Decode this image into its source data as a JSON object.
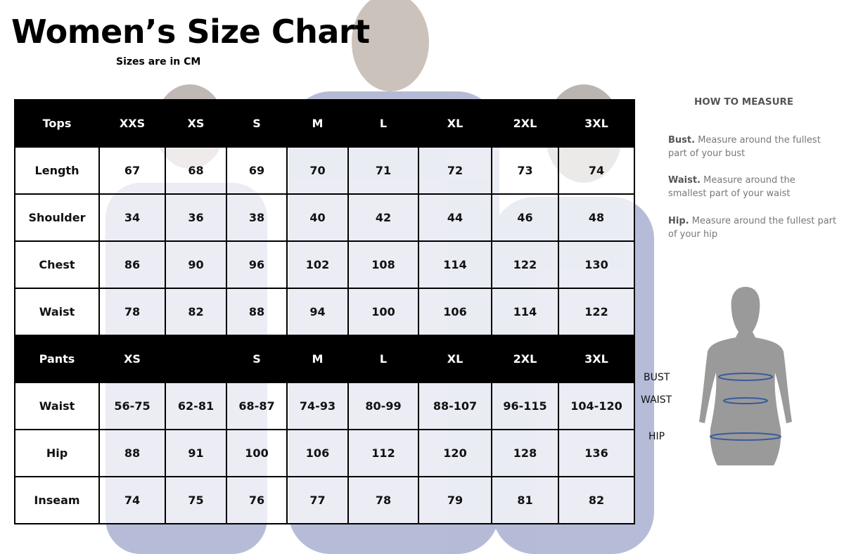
{
  "title": "Women’s Size Chart",
  "subtitle": "Sizes are in CM",
  "tops": {
    "header": [
      "Tops",
      "XXS",
      "XS",
      "S",
      "M",
      "L",
      "XL",
      "2XL",
      "3XL"
    ],
    "rows": [
      [
        "Length",
        "67",
        "68",
        "69",
        "70",
        "71",
        "72",
        "73",
        "74"
      ],
      [
        "Shoulder",
        "34",
        "36",
        "38",
        "40",
        "42",
        "44",
        "46",
        "48"
      ],
      [
        "Chest",
        "86",
        "90",
        "96",
        "102",
        "108",
        "114",
        "122",
        "130"
      ],
      [
        "Waist",
        "78",
        "82",
        "88",
        "94",
        "100",
        "106",
        "114",
        "122"
      ]
    ]
  },
  "pants": {
    "header": [
      "Pants",
      "XS",
      "",
      "S",
      "M",
      "L",
      "XL",
      "2XL",
      "3XL"
    ],
    "rows": [
      [
        "Waist",
        "56-75",
        "62-81",
        "68-87",
        "74-93",
        "80-99",
        "88-107",
        "96-115",
        "104-120"
      ],
      [
        "Hip",
        "88",
        "91",
        "100",
        "106",
        "112",
        "120",
        "128",
        "136"
      ],
      [
        "Inseam",
        "74",
        "75",
        "76",
        "77",
        "78",
        "79",
        "81",
        "82"
      ]
    ]
  },
  "how_to_measure": {
    "heading": "HOW TO MEASURE",
    "items": [
      {
        "term": "Bust.",
        "text": " Measure around the fullest part of your bust"
      },
      {
        "term": "Waist.",
        "text": " Measure around the smallest part of your waist"
      },
      {
        "term": "Hip.",
        "text": " Measure around the fullest part of your hip"
      }
    ],
    "figure_labels": {
      "bust": "BUST",
      "waist": "WAIST",
      "hip": "HIP"
    }
  },
  "colors": {
    "header_bg": "#000000",
    "scrubs_blue": "#2f3f8f",
    "figure_gray": "#9a9a9a",
    "line_blue": "#3a5a9a"
  }
}
